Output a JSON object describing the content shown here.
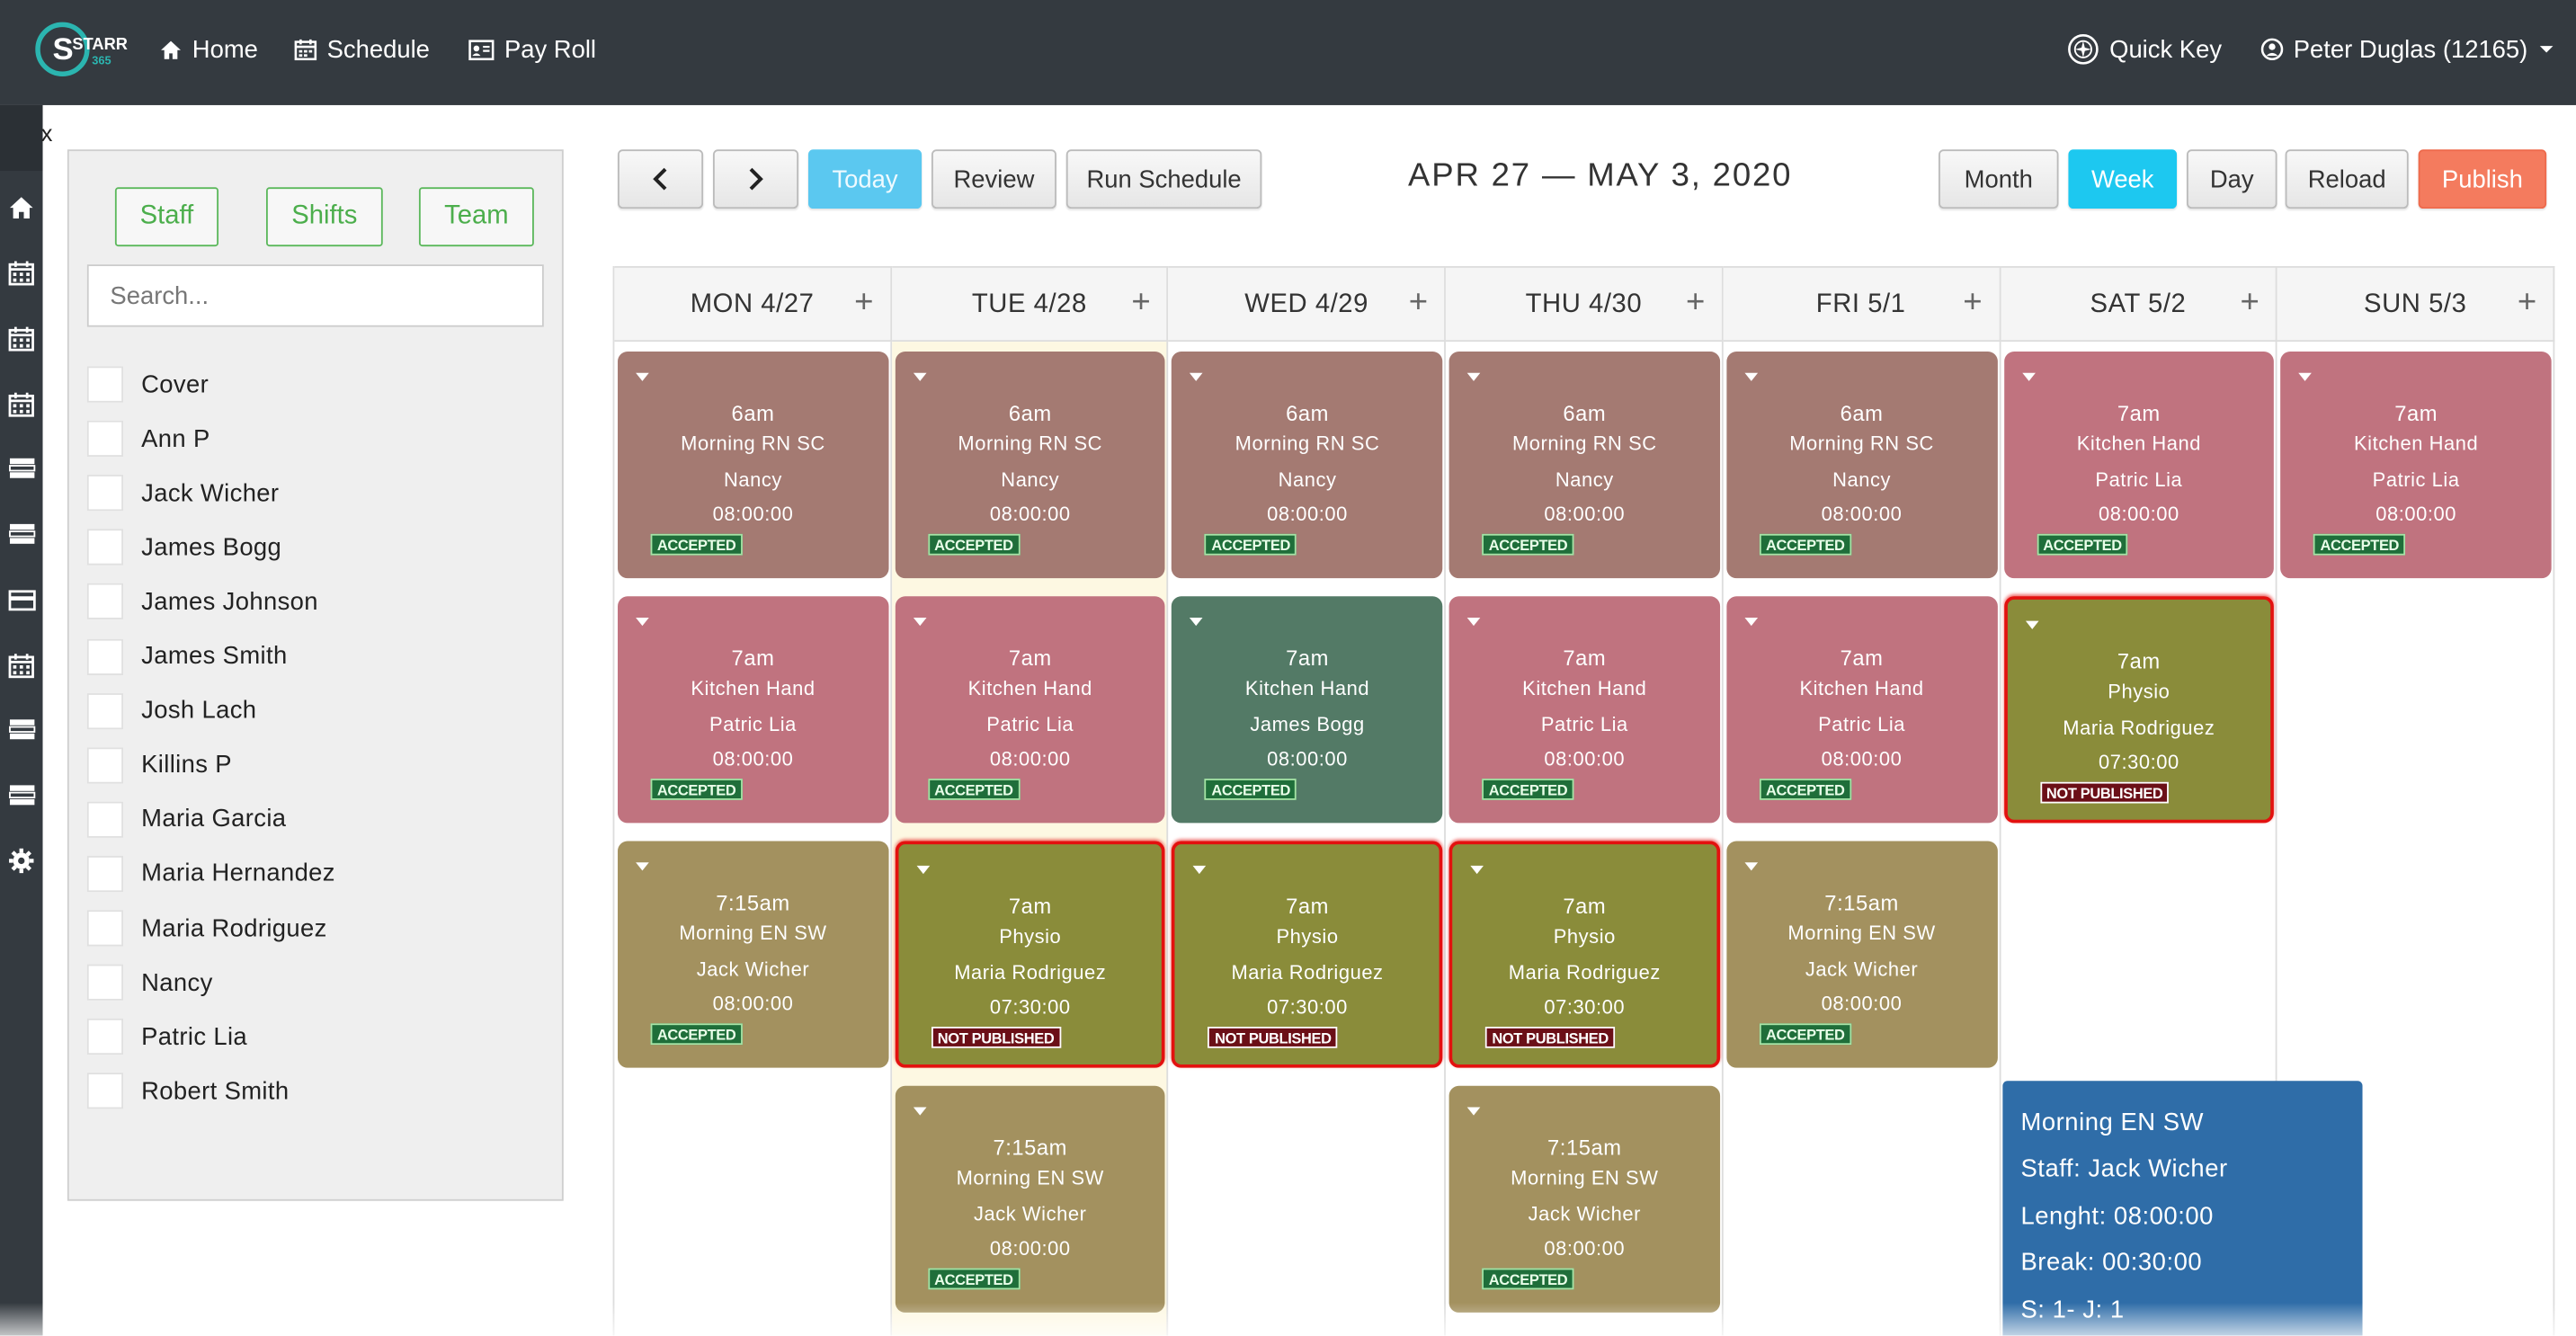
{
  "app": {
    "logo_text": "STARR",
    "logo_sub": "365"
  },
  "nav": {
    "home": "Home",
    "schedule": "Schedule",
    "payroll": "Pay Roll",
    "quick_key": "Quick Key",
    "user": "Peter Duglas (12165)"
  },
  "sidebar": {
    "close": "x"
  },
  "panel": {
    "tabs": [
      "Staff",
      "Shifts",
      "Team"
    ],
    "search_placeholder": "Search...",
    "staff": [
      "Cover",
      "Ann P",
      "Jack Wicher",
      "James Bogg",
      "James Johnson",
      "James Smith",
      "Josh Lach",
      "Killins P",
      "Maria Garcia",
      "Maria Hernandez",
      "Maria Rodriguez",
      "Nancy",
      "Patric Lia",
      "Robert Smith"
    ]
  },
  "toolbar": {
    "prev": "‹",
    "next": "›",
    "today": "Today",
    "review": "Review",
    "run_schedule": "Run Schedule",
    "title": "APR 27 — MAY 3, 2020",
    "month": "Month",
    "week": "Week",
    "day": "Day",
    "reload": "Reload",
    "publish": "Publish"
  },
  "days": [
    {
      "label": "MON 4/27",
      "today": false
    },
    {
      "label": "TUE 4/28",
      "today": true
    },
    {
      "label": "WED 4/29",
      "today": false
    },
    {
      "label": "THU 4/30",
      "today": false
    },
    {
      "label": "FRI 5/1",
      "today": false
    },
    {
      "label": "SAT 5/2",
      "today": false
    },
    {
      "label": "SUN 5/3",
      "today": false
    }
  ],
  "shifts": [
    {
      "day": 0,
      "slot": 0,
      "time": "6am",
      "role": "Morning RN SC",
      "staff": "Nancy",
      "length": "08:00:00",
      "status": "ACCEPTED",
      "color": "#a47a72"
    },
    {
      "day": 1,
      "slot": 0,
      "time": "6am",
      "role": "Morning RN SC",
      "staff": "Nancy",
      "length": "08:00:00",
      "status": "ACCEPTED",
      "color": "#a47a72"
    },
    {
      "day": 2,
      "slot": 0,
      "time": "6am",
      "role": "Morning RN SC",
      "staff": "Nancy",
      "length": "08:00:00",
      "status": "ACCEPTED",
      "color": "#a47a72"
    },
    {
      "day": 3,
      "slot": 0,
      "time": "6am",
      "role": "Morning RN SC",
      "staff": "Nancy",
      "length": "08:00:00",
      "status": "ACCEPTED",
      "color": "#a47a72"
    },
    {
      "day": 4,
      "slot": 0,
      "time": "6am",
      "role": "Morning RN SC",
      "staff": "Nancy",
      "length": "08:00:00",
      "status": "ACCEPTED",
      "color": "#a47a72"
    },
    {
      "day": 5,
      "slot": 0,
      "time": "7am",
      "role": "Kitchen Hand",
      "staff": "Patric Lia",
      "length": "08:00:00",
      "status": "ACCEPTED",
      "color": "#c0737f"
    },
    {
      "day": 6,
      "slot": 0,
      "time": "7am",
      "role": "Kitchen Hand",
      "staff": "Patric Lia",
      "length": "08:00:00",
      "status": "ACCEPTED",
      "color": "#c0737f"
    },
    {
      "day": 0,
      "slot": 1,
      "time": "7am",
      "role": "Kitchen Hand",
      "staff": "Patric Lia",
      "length": "08:00:00",
      "status": "ACCEPTED",
      "color": "#c0737f"
    },
    {
      "day": 1,
      "slot": 1,
      "time": "7am",
      "role": "Kitchen Hand",
      "staff": "Patric Lia",
      "length": "08:00:00",
      "status": "ACCEPTED",
      "color": "#c0737f"
    },
    {
      "day": 2,
      "slot": 1,
      "time": "7am",
      "role": "Kitchen Hand",
      "staff": "James Bogg",
      "length": "08:00:00",
      "status": "ACCEPTED",
      "color": "#537a66"
    },
    {
      "day": 3,
      "slot": 1,
      "time": "7am",
      "role": "Kitchen Hand",
      "staff": "Patric Lia",
      "length": "08:00:00",
      "status": "ACCEPTED",
      "color": "#c0737f"
    },
    {
      "day": 4,
      "slot": 1,
      "time": "7am",
      "role": "Kitchen Hand",
      "staff": "Patric Lia",
      "length": "08:00:00",
      "status": "ACCEPTED",
      "color": "#c0737f"
    },
    {
      "day": 5,
      "slot": 1,
      "time": "7am",
      "role": "Physio",
      "staff": "Maria Rodriguez",
      "length": "07:30:00",
      "status": "NOT PUBLISHED",
      "color": "#8a8c3a"
    },
    {
      "day": 0,
      "slot": 2,
      "time": "7:15am",
      "role": "Morning EN SW",
      "staff": "Jack Wicher",
      "length": "08:00:00",
      "status": "ACCEPTED",
      "color": "#a3915f"
    },
    {
      "day": 1,
      "slot": 2,
      "time": "7am",
      "role": "Physio",
      "staff": "Maria Rodriguez",
      "length": "07:30:00",
      "status": "NOT PUBLISHED",
      "color": "#8a8c3a"
    },
    {
      "day": 2,
      "slot": 2,
      "time": "7am",
      "role": "Physio",
      "staff": "Maria Rodriguez",
      "length": "07:30:00",
      "status": "NOT PUBLISHED",
      "color": "#8a8c3a"
    },
    {
      "day": 3,
      "slot": 2,
      "time": "7am",
      "role": "Physio",
      "staff": "Maria Rodriguez",
      "length": "07:30:00",
      "status": "NOT PUBLISHED",
      "color": "#8a8c3a"
    },
    {
      "day": 4,
      "slot": 2,
      "time": "7:15am",
      "role": "Morning EN SW",
      "staff": "Jack Wicher",
      "length": "08:00:00",
      "status": "ACCEPTED",
      "color": "#a3915f"
    },
    {
      "day": 1,
      "slot": 3,
      "time": "7:15am",
      "role": "Morning EN SW",
      "staff": "Jack Wicher",
      "length": "08:00:00",
      "status": "ACCEPTED",
      "color": "#a3915f"
    },
    {
      "day": 3,
      "slot": 3,
      "time": "7:15am",
      "role": "Morning EN SW",
      "staff": "Jack Wicher",
      "length": "08:00:00",
      "status": "ACCEPTED",
      "color": "#a3915f"
    }
  ],
  "tooltip": {
    "title": "Morning EN SW",
    "staff": "Staff: Jack Wicher",
    "length": "Lenght: 08:00:00",
    "break": "Break: 00:30:00",
    "extra": "S: 1- J: 1"
  },
  "colors": {
    "topbar": "#343a40",
    "today_btn": "#5bc8f0",
    "week_btn": "#1dc8f0",
    "publish_btn": "#f47b5e",
    "not_published_border": "#e3110f",
    "tooltip_bg": "#2f6da8"
  },
  "icons": {
    "nav": [
      "home-icon",
      "calendar-icon",
      "id-card-icon",
      "compass-icon",
      "user-icon",
      "caret-down-icon"
    ],
    "rail": [
      "home-icon",
      "calendar-icon",
      "calendar-icon",
      "calendar-icon",
      "list-icon",
      "list-icon",
      "card-icon",
      "calendar-icon",
      "list-icon",
      "list-icon",
      "gear-icon"
    ]
  }
}
